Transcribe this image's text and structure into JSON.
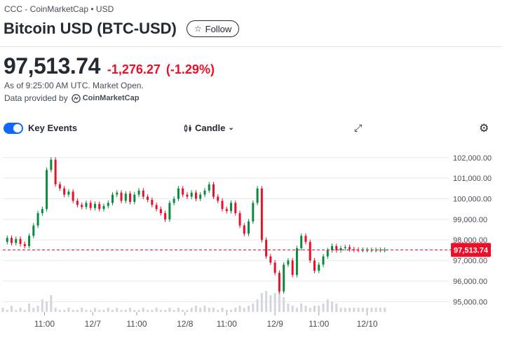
{
  "header": {
    "exchange": "CCC - CoinMarketCap • USD",
    "title": "Bitcoin USD (BTC-USD)",
    "follow_label": "Follow"
  },
  "quote": {
    "price": "97,513.74",
    "change": "-1,276.27",
    "change_pct": "(-1.29%)",
    "as_of": "As of 9:25:00 AM UTC. Market Open.",
    "provider_label": "Data provided by",
    "provider_name": "CoinMarketCap"
  },
  "controls": {
    "key_events_label": "Key Events",
    "key_events_on": true,
    "chart_type_label": "Candle"
  },
  "colors": {
    "up": "#0a8a3e",
    "down": "#eb0f29",
    "accent": "#0f69ff",
    "grid": "#e7e9ec"
  },
  "chart_data": {
    "type": "line",
    "style": "candlestick",
    "ylim": [
      94500,
      102300
    ],
    "y_ticks": [
      "102,000.00",
      "101,000.00",
      "100,000.00",
      "99,000.00",
      "98,000.00",
      "97,000.00",
      "96,000.00",
      "95,000.00"
    ],
    "y_tick_values": [
      102000,
      101000,
      100000,
      99000,
      98000,
      97000,
      96000,
      95000
    ],
    "x_ticks": [
      "11:00",
      "12/7",
      "11:00",
      "12/8",
      "11:00",
      "12/9",
      "11:00",
      "12/10"
    ],
    "x_tick_positions": [
      0.095,
      0.205,
      0.305,
      0.415,
      0.51,
      0.62,
      0.72,
      0.83
    ],
    "current_price": 97513.74,
    "current_price_label": "97,513.74",
    "series": [
      {
        "x": [
          0,
          0.01,
          0.02,
          0.03,
          0.04,
          0.05,
          0.06,
          0.07,
          0.08,
          0.09,
          0.1,
          0.11,
          0.12,
          0.13,
          0.14,
          0.15,
          0.16,
          0.17,
          0.18,
          0.19,
          0.2,
          0.21,
          0.22,
          0.23,
          0.24,
          0.25,
          0.26,
          0.27,
          0.28,
          0.29,
          0.3,
          0.31,
          0.32,
          0.33,
          0.34,
          0.35,
          0.36,
          0.37,
          0.38,
          0.39,
          0.4,
          0.41,
          0.42,
          0.43,
          0.44,
          0.45,
          0.46,
          0.47,
          0.48,
          0.49,
          0.5,
          0.51,
          0.52,
          0.53,
          0.54,
          0.55,
          0.56,
          0.57,
          0.58,
          0.59,
          0.6,
          0.61,
          0.62,
          0.63,
          0.64,
          0.65,
          0.66,
          0.67,
          0.68,
          0.69,
          0.7,
          0.71,
          0.72,
          0.73,
          0.74,
          0.75,
          0.76,
          0.77,
          0.78,
          0.79,
          0.8,
          0.81,
          0.82,
          0.83,
          0.84,
          0.85,
          0.86,
          0.87
        ],
        "values": [
          97900,
          98100,
          97850,
          98050,
          97800,
          97700,
          98200,
          98700,
          99300,
          99500,
          101400,
          101900,
          100700,
          100500,
          100200,
          100350,
          99900,
          99700,
          99600,
          99800,
          99550,
          99750,
          99500,
          99650,
          99800,
          100200,
          100300,
          99900,
          100250,
          99850,
          100200,
          100400,
          100100,
          99950,
          99700,
          99500,
          99300,
          99000,
          99800,
          100000,
          100500,
          100200,
          100100,
          100300,
          100000,
          100200,
          100400,
          100700,
          100100,
          99900,
          99500,
          99400,
          99800,
          99300,
          98700,
          98300,
          98900,
          99800,
          100500,
          98000,
          97200,
          96900,
          96400,
          95500,
          96800,
          97000,
          96300,
          97600,
          98200,
          97900,
          97000,
          96500,
          96800,
          97200,
          97500,
          97700,
          97500,
          97600,
          97650,
          97550,
          97520,
          97514,
          97514,
          97514,
          97514,
          97514,
          97514,
          97514
        ]
      }
    ],
    "volume": [
      2,
      1,
      3,
      1,
      2,
      1,
      4,
      2,
      3,
      6,
      5,
      8,
      2,
      1,
      1,
      2,
      1,
      1,
      2,
      1,
      1,
      2,
      1,
      1,
      2,
      1,
      2,
      1,
      1,
      2,
      1,
      1,
      2,
      1,
      1,
      2,
      1,
      1,
      2,
      1,
      2,
      1,
      1,
      2,
      3,
      2,
      3,
      2,
      2,
      1,
      2,
      1,
      1,
      2,
      3,
      2,
      3,
      4,
      6,
      9,
      10,
      8,
      9,
      10,
      7,
      4,
      3,
      2,
      4,
      3,
      2,
      3,
      3,
      4,
      6,
      5,
      4,
      2,
      2,
      2,
      2,
      2,
      2,
      2,
      2,
      2,
      2,
      2
    ]
  }
}
